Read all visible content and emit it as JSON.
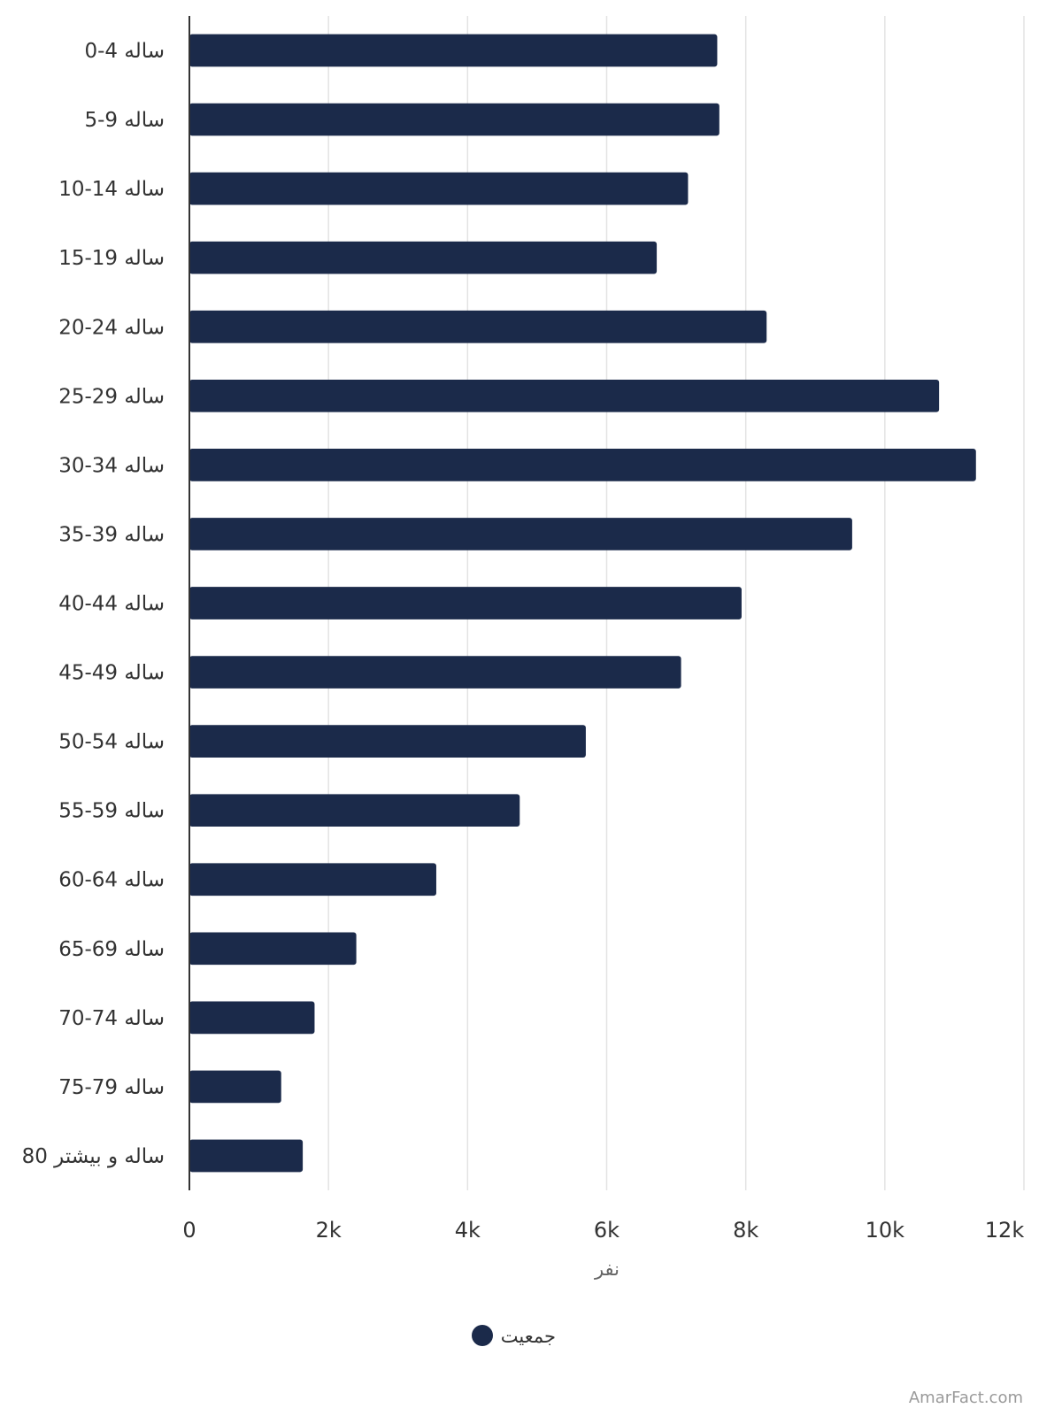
{
  "chart_data": {
    "type": "bar",
    "orientation": "horizontal",
    "categories": [
      "0-4 ساله",
      "5-9 ساله",
      "10-14 ساله",
      "15-19 ساله",
      "20-24 ساله",
      "25-29 ساله",
      "30-34 ساله",
      "35-39 ساله",
      "40-44 ساله",
      "45-49 ساله",
      "50-54 ساله",
      "55-59 ساله",
      "60-64 ساله",
      "65-69 ساله",
      "70-74 ساله",
      "75-79 ساله",
      "80 ساله و بیشتر"
    ],
    "series": [
      {
        "name": "جمعیت",
        "color": "#1b2a4a",
        "values": [
          7590,
          7620,
          7170,
          6720,
          8300,
          10780,
          11310,
          9530,
          7940,
          7070,
          5700,
          4750,
          3550,
          2400,
          1800,
          1320,
          1630
        ]
      }
    ],
    "x_ticks": [
      "0",
      "2k",
      "4k",
      "6k",
      "8k",
      "10k",
      "12k"
    ],
    "xlim": [
      0,
      12000
    ],
    "xlabel": "نفر",
    "ylabel": "",
    "title": "",
    "grid": true,
    "legend_position": "bottom-center"
  },
  "watermark": "AmarFact.com"
}
